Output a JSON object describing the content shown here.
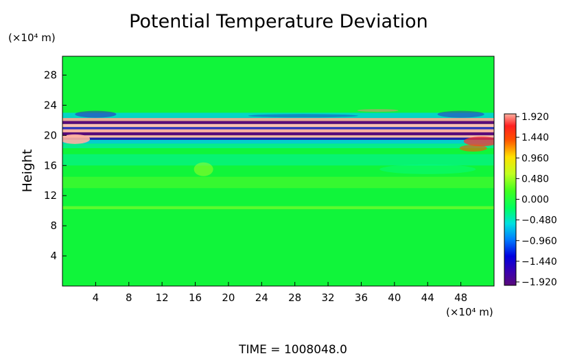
{
  "chart_data": {
    "type": "heatmap",
    "title": "Potential Temperature Deviation",
    "xlabel": "",
    "ylabel": "Height",
    "x_unit": "(×10⁴ m)",
    "y_unit": "(×10⁴ m)",
    "xlim": [
      0,
      52
    ],
    "ylim": [
      0,
      30.5
    ],
    "x_ticks": [
      4,
      8,
      12,
      16,
      20,
      24,
      28,
      32,
      36,
      40,
      44,
      48
    ],
    "y_ticks": [
      4,
      8,
      12,
      16,
      20,
      24,
      28
    ],
    "colorbar": {
      "range": [
        -1.92,
        1.92
      ],
      "tick_labels": [
        "1.920",
        "1.440",
        "0.960",
        "0.480",
        "0.000",
        "−0.480",
        "−0.960",
        "−1.440",
        "−1.920"
      ],
      "tick_values": [
        1.92,
        1.44,
        0.96,
        0.48,
        0.0,
        -0.48,
        -0.96,
        -1.44,
        -1.92
      ]
    },
    "field_description_bands": [
      {
        "y_range": [
          18,
          23
        ],
        "value_range": [
          -1.92,
          1.92
        ],
        "pattern": "strong horizontal alternating layers"
      },
      {
        "y_range": [
          0,
          17
        ],
        "value_range": [
          -0.48,
          0.48
        ],
        "pattern": "weak turbulence"
      },
      {
        "y_range": [
          23,
          30.5
        ],
        "value_range": [
          -0.48,
          0.48
        ],
        "pattern": "weak waves near edges"
      }
    ],
    "time_label": "TIME",
    "time_value": "1008048.0"
  },
  "colors": {
    "background": "#00ff33",
    "colormap": [
      "#6a0a8a",
      "#0000d0",
      "#00a0ff",
      "#00e0c0",
      "#20ff40",
      "#c0ff20",
      "#ffe000",
      "#ff3000",
      "#ffb0b0"
    ]
  }
}
